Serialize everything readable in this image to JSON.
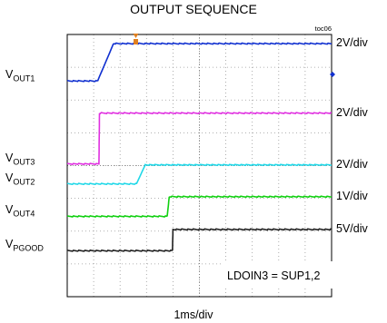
{
  "chart_data": {
    "type": "line",
    "title": "OUTPUT SEQUENCE",
    "figure_id": "toc06",
    "xlabel": "1ms/div",
    "annotation": "LDOIN3 = SUP1,2",
    "grid": true,
    "divisions": {
      "x": 10,
      "y": 8
    },
    "series": [
      {
        "name": "V",
        "sub": "OUT1",
        "scale": "2V/div",
        "color": "#1030d0",
        "points": [
          [
            0,
            6.58
          ],
          [
            1.15,
            6.58
          ],
          [
            1.75,
            7.72
          ],
          [
            10,
            7.72
          ]
        ]
      },
      {
        "name": "V",
        "sub": "OUT3",
        "scale": "2V/div",
        "color": "#e030e0",
        "points": [
          [
            0,
            4.05
          ],
          [
            1.2,
            4.05
          ],
          [
            1.22,
            5.6
          ],
          [
            10,
            5.6
          ]
        ]
      },
      {
        "name": "V",
        "sub": "OUT2",
        "scale": "2V/div",
        "color": "#20d8e8",
        "points": [
          [
            0,
            3.44
          ],
          [
            2.62,
            3.44
          ],
          [
            2.95,
            4.02
          ],
          [
            10,
            4.02
          ]
        ]
      },
      {
        "name": "V",
        "sub": "OUT4",
        "scale": "1V/div",
        "color": "#10d010",
        "points": [
          [
            0,
            2.45
          ],
          [
            3.78,
            2.45
          ],
          [
            3.86,
            3.05
          ],
          [
            10,
            3.05
          ]
        ]
      },
      {
        "name": "V",
        "sub": "PGOOD",
        "scale": "5V/div",
        "color": "#202020",
        "points": [
          [
            0,
            1.4
          ],
          [
            3.98,
            1.4
          ],
          [
            4.0,
            2.05
          ],
          [
            10,
            2.05
          ]
        ]
      }
    ]
  }
}
